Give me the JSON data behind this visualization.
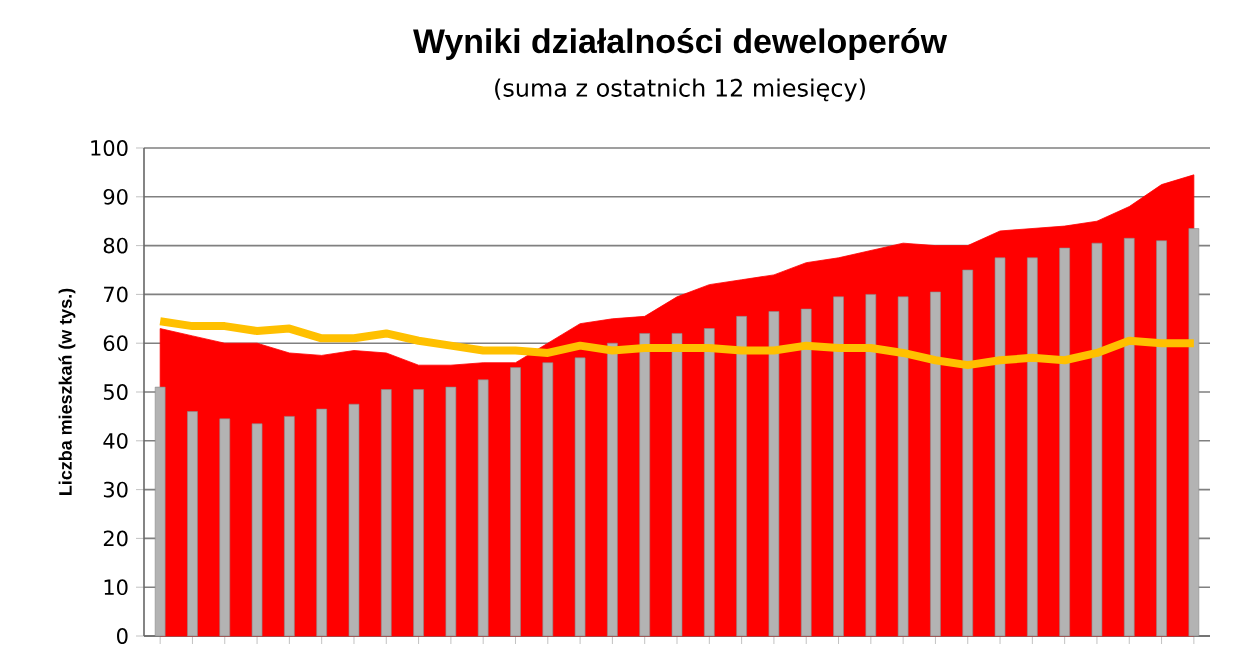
{
  "chart_data": {
    "type": "bar",
    "title": "Wyniki działalności deweloperów",
    "subtitle": "(suma z ostatnich 12 miesięcy)",
    "ylabel": "Liczba mieszkań (w tys.)",
    "categories": [
      null,
      null,
      null,
      null,
      null,
      null,
      null,
      null,
      null,
      null,
      null,
      null,
      null,
      null,
      null,
      null,
      null,
      null,
      null,
      null,
      null,
      null,
      null,
      null,
      null,
      null,
      null,
      null,
      null,
      null,
      null,
      null,
      null
    ],
    "series": [
      {
        "type": "area",
        "color": "#ff0000",
        "values": [
          63,
          61.5,
          60,
          60,
          58,
          57.5,
          58.5,
          58,
          55.5,
          55.5,
          56,
          56,
          60,
          64,
          65,
          65.5,
          69.5,
          72,
          73,
          74,
          76.5,
          77.5,
          79,
          80.5,
          80,
          80,
          83,
          83.5,
          84,
          85,
          88,
          92.5,
          94.5
        ]
      },
      {
        "color": "#b3b3b3",
        "values": [
          51,
          46,
          44.5,
          43.5,
          45,
          46.5,
          47.5,
          50.5,
          50.5,
          51,
          52.5,
          55,
          56,
          57,
          60,
          62,
          62,
          63,
          65.5,
          66.5,
          67,
          69.5,
          70,
          69.5,
          70.5,
          75,
          77.5,
          77.5,
          79.5,
          80.5,
          81.5,
          81,
          83.5
        ]
      },
      {
        "type": "line",
        "color": "#ffc000",
        "values": [
          64.5,
          63.5,
          63.5,
          62.5,
          63,
          61,
          61,
          62,
          60.5,
          59.5,
          58.5,
          58.5,
          58,
          59.5,
          58.5,
          59,
          59,
          59,
          58.5,
          58.5,
          59.5,
          59,
          59,
          58,
          56.5,
          55.5,
          56.5,
          57,
          56.5,
          58,
          60.5,
          60,
          60
        ]
      }
    ],
    "ylim": [
      0,
      100
    ],
    "yticks": [
      0,
      10,
      20,
      30,
      40,
      50,
      60,
      70,
      80,
      90,
      100
    ],
    "grid": "y",
    "tick_labels": "y"
  }
}
